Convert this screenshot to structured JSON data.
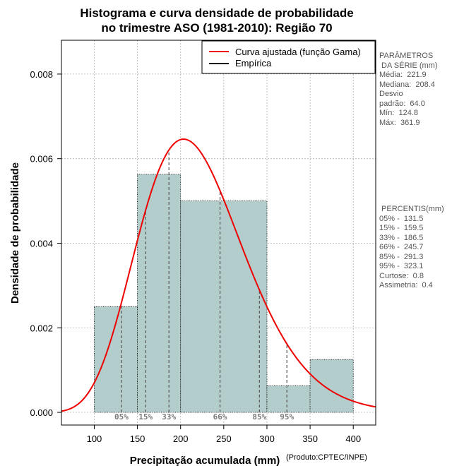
{
  "chart_data": {
    "type": "histogram",
    "title": [
      "Histograma e curva densidade de probabilidade",
      "no trimestre ASO (1981-2010): Região 70"
    ],
    "xlabel": "Precipitação acumulada (mm)",
    "ylabel": "Densidade de probabilidade",
    "credit": "(Produto:CPTEC/INPE)",
    "xlim": [
      62,
      426
    ],
    "ylim": [
      -0.0003,
      0.0088
    ],
    "xticks": [
      100,
      150,
      200,
      250,
      300,
      350,
      400
    ],
    "yticks": [
      0.0,
      0.002,
      0.004,
      0.006,
      0.008
    ],
    "ytick_labels": [
      "0.000",
      "0.002",
      "0.004",
      "0.006",
      "0.008"
    ],
    "grid": true,
    "bars": [
      {
        "start": 100,
        "end": 150,
        "density": 0.0025
      },
      {
        "start": 150,
        "end": 200,
        "density": 0.00563
      },
      {
        "start": 200,
        "end": 300,
        "density": 0.005
      },
      {
        "start": 300,
        "end": 350,
        "density": 0.00063
      },
      {
        "start": 350,
        "end": 400,
        "density": 0.00125
      }
    ],
    "bar_color": "#b3cccc",
    "curve": {
      "name": "Curva ajustada (função Gama)",
      "color": "#ee0000",
      "mean": 221.9,
      "sd": 64.0
    },
    "percentile_markers": [
      {
        "label": "05%",
        "value": 131.5
      },
      {
        "label": "15%",
        "value": 159.5
      },
      {
        "label": "33%",
        "value": 186.5
      },
      {
        "label": "66%",
        "value": 245.7
      },
      {
        "label": "85%",
        "value": 291.3
      },
      {
        "label": "95%",
        "value": 323.1
      }
    ],
    "legend": [
      {
        "label": "Curva ajustada (função Gama)",
        "color": "#ee0000"
      },
      {
        "label": "Empírica",
        "color": "#000000"
      }
    ],
    "legend_position": "top-right"
  },
  "side_panel": {
    "params": [
      "PARÂMETROS",
      " DA SÉRIE (mm)",
      "",
      "Média:  221.9",
      "Mediana:  208.4",
      "Desvio",
      "padrão:  64.0",
      "Mín:  124.8",
      "Máx:  361.9"
    ],
    "percentiles": [
      " PERCENTIS(mm)",
      "",
      "05% -  131.5",
      "15% -  159.5",
      "33% -  186.5",
      "66% -  245.7",
      "85% -  291.3",
      "95% -  323.1",
      "",
      "Curtose:  0.8",
      "Assimetria:  0.4"
    ]
  }
}
